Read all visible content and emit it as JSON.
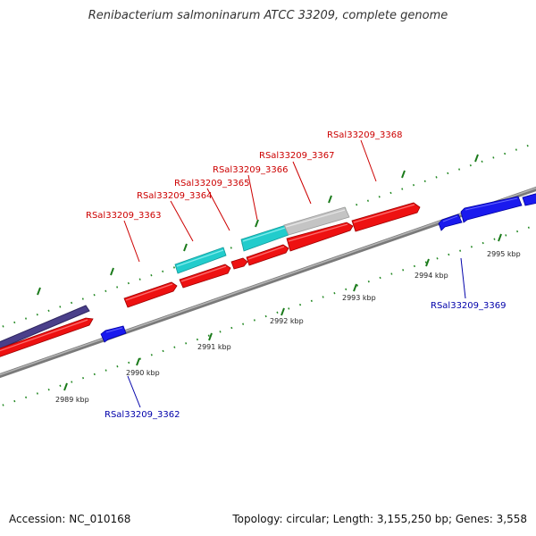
{
  "title": "Renibacterium salmoninarum ATCC 33209, complete genome",
  "footer": {
    "accession": "Accession: NC_010168",
    "summary": "Topology: circular; Length: 3,155,250 bp; Genes: 3,558"
  },
  "colors": {
    "forward_gene": "#ee1111",
    "reverse_gene": "#1a1aee",
    "cyan_feature": "#22cccc",
    "gray_feature": "#c4c4c4",
    "dark_feature": "#4a3f8a",
    "backbone": "#8a8a8a",
    "tick": "#228822",
    "forward_label": "#cc0000",
    "reverse_label": "#0000aa"
  },
  "scale_labels": [
    "2989 kbp",
    "2990 kbp",
    "2991 kbp",
    "2992 kbp",
    "2993 kbp",
    "2994 kbp",
    "2995 kbp"
  ],
  "gene_labels": {
    "forward": [
      "RSal33209_3363",
      "RSal33209_3364",
      "RSal33209_3365",
      "RSal33209_3366",
      "RSal33209_3367",
      "RSal33209_3368"
    ],
    "reverse": [
      "RSal33209_3362",
      "RSal33209_3369"
    ]
  }
}
